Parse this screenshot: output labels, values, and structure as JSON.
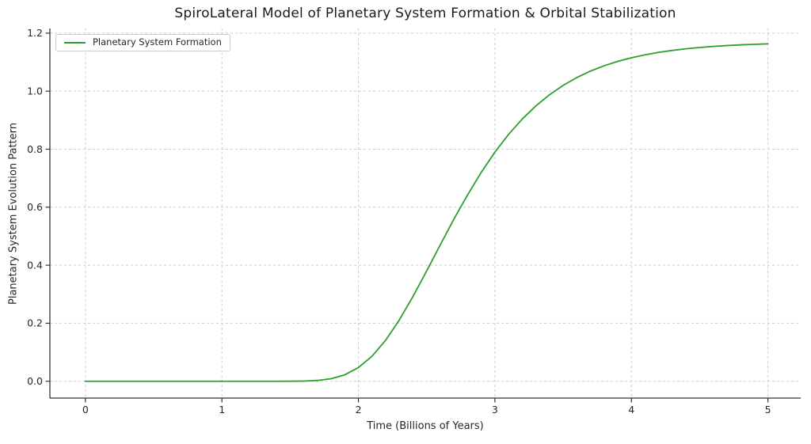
{
  "chart_data": {
    "type": "line",
    "title": "SpiroLateral Model of Planetary System Formation & Orbital Stabilization",
    "xlabel": "Time (Billions of Years)",
    "ylabel": "Planetary System Evolution Pattern",
    "xlim": [
      -0.26,
      5.24
    ],
    "ylim": [
      -0.058,
      1.216
    ],
    "xticks": [
      0,
      1,
      2,
      3,
      4,
      5
    ],
    "yticks": [
      0.0,
      0.2,
      0.4,
      0.6,
      0.8,
      1.0,
      1.2
    ],
    "grid": true,
    "grid_style": "dashed",
    "legend": {
      "position": "upper-left",
      "entries": [
        {
          "label": "Planetary System Formation",
          "color": "#2ca02c"
        }
      ]
    },
    "style": {
      "line_color": "#2ca02c",
      "grid_color": "#cccccc",
      "spine_color": "#333333",
      "text_color": "#262626",
      "background": "#ffffff"
    },
    "series": [
      {
        "name": "Planetary System Formation",
        "color": "#2ca02c",
        "x": [
          0.0,
          0.1,
          0.2,
          0.3,
          0.4,
          0.5,
          0.6,
          0.7,
          0.8,
          0.9,
          1.0,
          1.1,
          1.2,
          1.3,
          1.4,
          1.5,
          1.6,
          1.7,
          1.8,
          1.9,
          2.0,
          2.1,
          2.2,
          2.3,
          2.4,
          2.5,
          2.6,
          2.7,
          2.8,
          2.9,
          3.0,
          3.1,
          3.2,
          3.3,
          3.4,
          3.5,
          3.6,
          3.7,
          3.8,
          3.9,
          4.0,
          4.1,
          4.2,
          4.3,
          4.4,
          4.5,
          4.6,
          4.7,
          4.8,
          4.9,
          5.0
        ],
        "y": [
          0,
          0,
          0,
          0,
          0,
          0,
          0,
          0,
          0,
          0,
          0,
          0,
          0,
          0,
          1e-05,
          0.0001,
          0.0007,
          0.0028,
          0.0088,
          0.0222,
          0.0472,
          0.0864,
          0.1417,
          0.2115,
          0.2925,
          0.3804,
          0.4705,
          0.5594,
          0.6426,
          0.7203,
          0.7899,
          0.8509,
          0.9038,
          0.9492,
          0.9876,
          1.02,
          1.0469,
          1.0692,
          1.0876,
          1.1027,
          1.1151,
          1.1253,
          1.1337,
          1.1405,
          1.1461,
          1.1505,
          1.1542,
          1.1572,
          1.1596,
          1.1615,
          1.1632
        ]
      }
    ]
  }
}
